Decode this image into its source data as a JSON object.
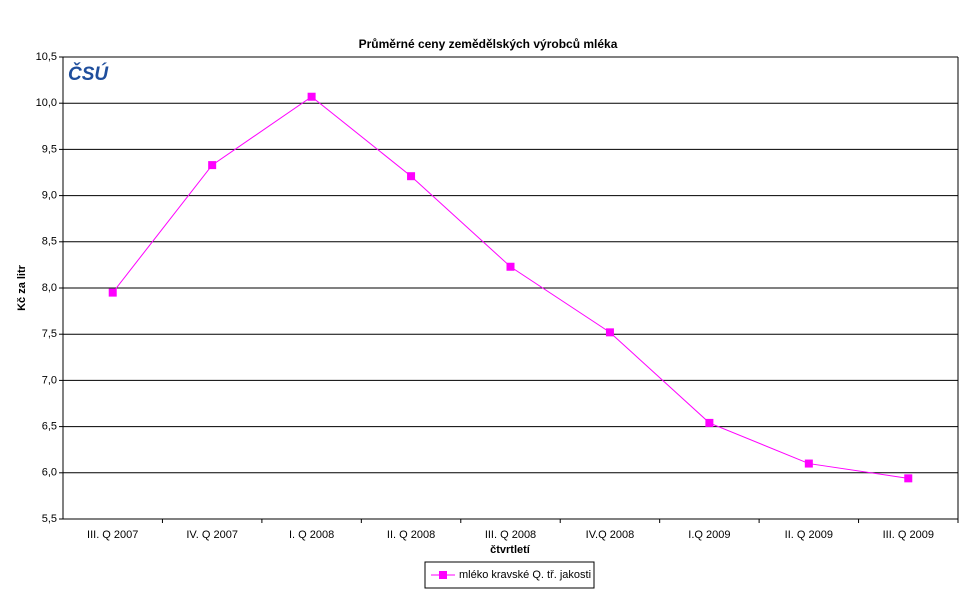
{
  "chart_data": {
    "type": "line",
    "title": "Průměrné ceny zemědělských výrobců mléka",
    "logo": "ČSÚ",
    "y_label": "Kč za litr",
    "x_label": "čtvrtletí",
    "categories": [
      "III. Q 2007",
      "IV. Q 2007",
      "I. Q 2008",
      "II. Q 2008",
      "III. Q 2008",
      "IV.Q 2008",
      "I.Q 2009",
      "II. Q 2009",
      "III. Q 2009"
    ],
    "series": [
      {
        "name": "mléko kravské Q. tř. jakosti",
        "color": "#ff00ff",
        "values": [
          7.95,
          9.33,
          10.07,
          9.21,
          8.23,
          7.52,
          6.54,
          6.1,
          5.94
        ]
      }
    ],
    "ylim": [
      5.5,
      10.5
    ],
    "yticks": [
      {
        "value": 5.5,
        "label": "5,5"
      },
      {
        "value": 6.0,
        "label": "6,0"
      },
      {
        "value": 6.5,
        "label": "6,5"
      },
      {
        "value": 7.0,
        "label": "7,0"
      },
      {
        "value": 7.5,
        "label": "7,5"
      },
      {
        "value": 8.0,
        "label": "8,0"
      },
      {
        "value": 8.5,
        "label": "8,5"
      },
      {
        "value": 9.0,
        "label": "9,0"
      },
      {
        "value": 9.5,
        "label": "9,5"
      },
      {
        "value": 10.0,
        "label": "10,0"
      },
      {
        "value": 10.5,
        "label": "10,5"
      }
    ],
    "grid": true,
    "legend": "bottom"
  }
}
